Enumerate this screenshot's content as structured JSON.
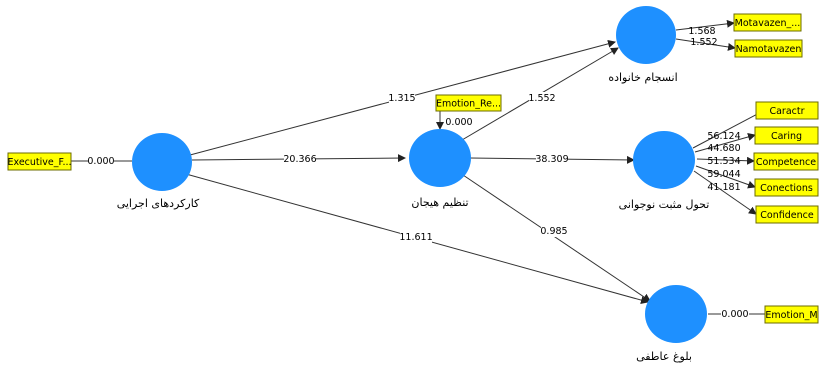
{
  "latent_variables": [
    {
      "id": "executive",
      "label": "کارکردهای اجرایی"
    },
    {
      "id": "emotion_reg",
      "label": "تنظیم هیجان"
    },
    {
      "id": "family",
      "label": "انسجام خانواده"
    },
    {
      "id": "positive_dev",
      "label": "تحول مثبت نوجوانی"
    },
    {
      "id": "emotional_maturity",
      "label": "بلوغ عاطفی"
    }
  ],
  "indicators": [
    {
      "id": "executive_f",
      "label": "Executive_F...",
      "value": "0.000"
    },
    {
      "id": "emotion_re",
      "label": "Emotion_Re...",
      "value": "0.000"
    },
    {
      "id": "motavazen",
      "label": "Motavazen_...",
      "value": "1.568"
    },
    {
      "id": "namotavazen",
      "label": "Namotavazen",
      "value": "1.552"
    },
    {
      "id": "caractr",
      "label": "Caractr",
      "value": "56.124"
    },
    {
      "id": "caring",
      "label": "Caring",
      "value": "44.680"
    },
    {
      "id": "competence",
      "label": "Competence",
      "value": "51.534"
    },
    {
      "id": "conections",
      "label": "Conections",
      "value": "59.044"
    },
    {
      "id": "confidence",
      "label": "Confidence",
      "value": "41.181"
    },
    {
      "id": "emotion_m",
      "label": "Emotion_M",
      "value": "0.000"
    }
  ],
  "paths": [
    {
      "id": "exec_family",
      "value": "1.315"
    },
    {
      "id": "exec_emoreg",
      "value": "20.366"
    },
    {
      "id": "exec_maturity",
      "value": "11.611"
    },
    {
      "id": "emoreg_family",
      "value": "1.552"
    },
    {
      "id": "emoreg_posdev",
      "value": "38.309"
    },
    {
      "id": "emoreg_maturity",
      "value": "0.985"
    }
  ]
}
